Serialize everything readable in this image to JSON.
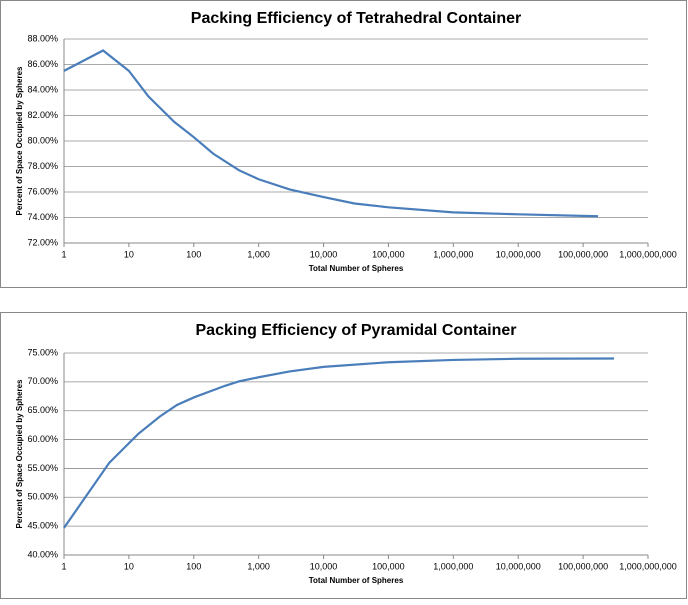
{
  "chart_data": [
    {
      "type": "line",
      "title": "Packing Efficiency of Tetrahedral Container",
      "xlabel": "Total Number of Spheres",
      "ylabel": "Percent of Space Occupied by Spheres",
      "xscale": "log",
      "grid": true,
      "xlim": [
        1,
        1000000000
      ],
      "xticks": [
        1,
        10,
        100,
        {
          "value": 1000,
          "label": "1,000"
        },
        {
          "value": 10000,
          "label": "10,000"
        },
        {
          "value": 100000,
          "label": "100,000"
        },
        {
          "value": 1000000,
          "label": "1,000,000"
        },
        {
          "value": 10000000,
          "label": "10,000,000"
        },
        {
          "value": 100000000,
          "label": "100,000,000"
        },
        {
          "value": 1000000000,
          "label": "1,000,000,000"
        }
      ],
      "ylim": [
        72,
        88
      ],
      "yticks": [
        {
          "value": 72,
          "label": "72.00%"
        },
        {
          "value": 74,
          "label": "74.00%"
        },
        {
          "value": 76,
          "label": "76.00%"
        },
        {
          "value": 78,
          "label": "78.00%"
        },
        {
          "value": 80,
          "label": "80.00%"
        },
        {
          "value": 82,
          "label": "82.00%"
        },
        {
          "value": 84,
          "label": "84.00%"
        },
        {
          "value": 86,
          "label": "86.00%"
        },
        {
          "value": 88,
          "label": "88.00%"
        }
      ],
      "x": [
        1,
        4,
        10,
        20,
        50,
        100,
        200,
        500,
        1000,
        3000,
        10000,
        30000,
        100000,
        1000000,
        10000000,
        170000000
      ],
      "series": [
        {
          "color": "#4a7ebb",
          "values": [
            85.5,
            87.1,
            85.5,
            83.5,
            81.5,
            80.3,
            79.0,
            77.7,
            77.0,
            76.2,
            75.6,
            75.1,
            74.8,
            74.4,
            74.25,
            74.1
          ]
        }
      ]
    },
    {
      "type": "line",
      "title": "Packing Efficiency of Pyramidal Container",
      "xlabel": "Total Number of Spheres",
      "ylabel": "Percent of Space Occupied by Spheres",
      "xscale": "log",
      "grid": true,
      "xlim": [
        1,
        1000000000
      ],
      "xticks": [
        1,
        10,
        100,
        {
          "value": 1000,
          "label": "1,000"
        },
        {
          "value": 10000,
          "label": "10,000"
        },
        {
          "value": 100000,
          "label": "100,000"
        },
        {
          "value": 1000000,
          "label": "1,000,000"
        },
        {
          "value": 10000000,
          "label": "10,000,000"
        },
        {
          "value": 100000000,
          "label": "100,000,000"
        },
        {
          "value": 1000000000,
          "label": "1,000,000,000"
        }
      ],
      "ylim": [
        40,
        75
      ],
      "yticks": [
        {
          "value": 40,
          "label": "40.00%"
        },
        {
          "value": 45,
          "label": "45.00%"
        },
        {
          "value": 50,
          "label": "50.00%"
        },
        {
          "value": 55,
          "label": "55.00%"
        },
        {
          "value": 60,
          "label": "60.00%"
        },
        {
          "value": 65,
          "label": "65.00%"
        },
        {
          "value": 70,
          "label": "70.00%"
        },
        {
          "value": 75,
          "label": "75.00%"
        }
      ],
      "x": [
        1,
        5,
        14,
        30,
        55,
        100,
        300,
        500,
        1000,
        3000,
        10000,
        100000,
        1000000,
        10000000,
        300000000
      ],
      "series": [
        {
          "color": "#4a7ebb",
          "values": [
            44.7,
            56.0,
            61.0,
            64.0,
            66.0,
            67.3,
            69.3,
            70.1,
            70.8,
            71.8,
            72.6,
            73.4,
            73.8,
            74.0,
            74.05
          ]
        }
      ]
    }
  ]
}
